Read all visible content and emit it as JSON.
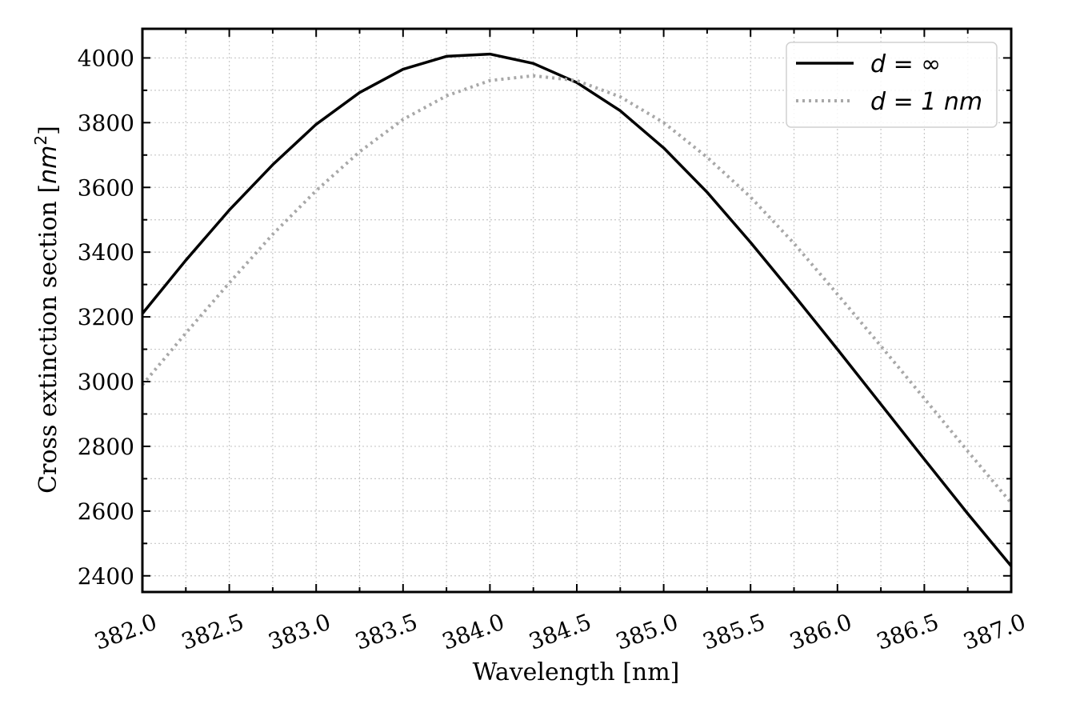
{
  "chart_data": {
    "type": "line",
    "title": "",
    "xlabel": "Wavelength [nm]",
    "ylabel_main": "Cross extinction section [",
    "ylabel_unit": "nm",
    "ylabel_exp": "2",
    "ylabel_close": "]",
    "xlim": [
      382.0,
      387.0
    ],
    "ylim": [
      2350,
      4090
    ],
    "xticks": [
      382.0,
      382.5,
      383.0,
      383.5,
      384.0,
      384.5,
      385.0,
      385.5,
      386.0,
      386.5,
      387.0
    ],
    "xtick_labels": [
      "382.0",
      "382.5",
      "383.0",
      "383.5",
      "384.0",
      "384.5",
      "385.0",
      "385.5",
      "386.0",
      "386.5",
      "387.0"
    ],
    "yticks": [
      2400,
      2600,
      2800,
      3000,
      3200,
      3400,
      3600,
      3800,
      4000
    ],
    "ytick_labels": [
      "2400",
      "2600",
      "2800",
      "3000",
      "3200",
      "3400",
      "3600",
      "3800",
      "4000"
    ],
    "grid": true,
    "legend_position": "top-right",
    "series": [
      {
        "name": "d = ∞",
        "color": "#000000",
        "style": "solid",
        "x": [
          382.0,
          382.25,
          382.5,
          382.75,
          383.0,
          383.25,
          383.5,
          383.75,
          384.0,
          384.25,
          384.5,
          384.75,
          385.0,
          385.25,
          385.5,
          385.75,
          386.0,
          386.25,
          386.5,
          386.75,
          387.0
        ],
        "values": [
          3210,
          3375,
          3530,
          3670,
          3795,
          3893,
          3965,
          4005,
          4012,
          3983,
          3924,
          3837,
          3722,
          3585,
          3430,
          3267,
          3100,
          2930,
          2760,
          2592,
          2430
        ]
      },
      {
        "name": "d = 1 nm",
        "color": "#a8a8a8",
        "style": "dotted",
        "x": [
          382.0,
          382.25,
          382.5,
          382.75,
          383.0,
          383.25,
          383.5,
          383.75,
          384.0,
          384.25,
          384.5,
          384.75,
          385.0,
          385.25,
          385.5,
          385.75,
          386.0,
          386.25,
          386.5,
          386.75,
          387.0
        ],
        "values": [
          2990,
          3150,
          3305,
          3455,
          3590,
          3710,
          3810,
          3883,
          3930,
          3945,
          3930,
          3880,
          3800,
          3693,
          3570,
          3427,
          3270,
          3110,
          2948,
          2785,
          2625
        ]
      }
    ]
  }
}
